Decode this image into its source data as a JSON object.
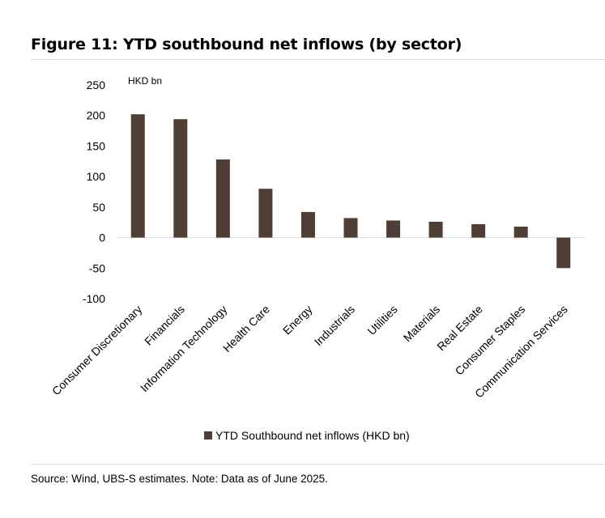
{
  "figure": {
    "title": "Figure 11: YTD southbound net inflows (by sector)",
    "source_note": "Source: Wind, UBS-S estimates. Note: Data as of June 2025."
  },
  "colors": {
    "bar": "#4f3e35",
    "axis": "#d9d9d9",
    "text": "#000000"
  },
  "chart_data": {
    "type": "bar",
    "title": "",
    "unit_label": "HKD bn",
    "xlabel": "",
    "ylabel": "",
    "ylim": [
      -100,
      250
    ],
    "yticks": [
      250,
      200,
      150,
      100,
      50,
      0,
      -50,
      -100
    ],
    "grid": false,
    "legend_position": "bottom",
    "categories": [
      "Consumer Discretionary",
      "Financials",
      "Information Technology",
      "Health Care",
      "Energy",
      "Industrials",
      "Utilities",
      "Materials",
      "Real Estate",
      "Consumer Staples",
      "Communication Services"
    ],
    "series": [
      {
        "name": "YTD Southbound net inflows (HKD bn)",
        "values": [
          202,
          194,
          128,
          80,
          42,
          32,
          28,
          26,
          22,
          18,
          -50
        ]
      }
    ]
  }
}
